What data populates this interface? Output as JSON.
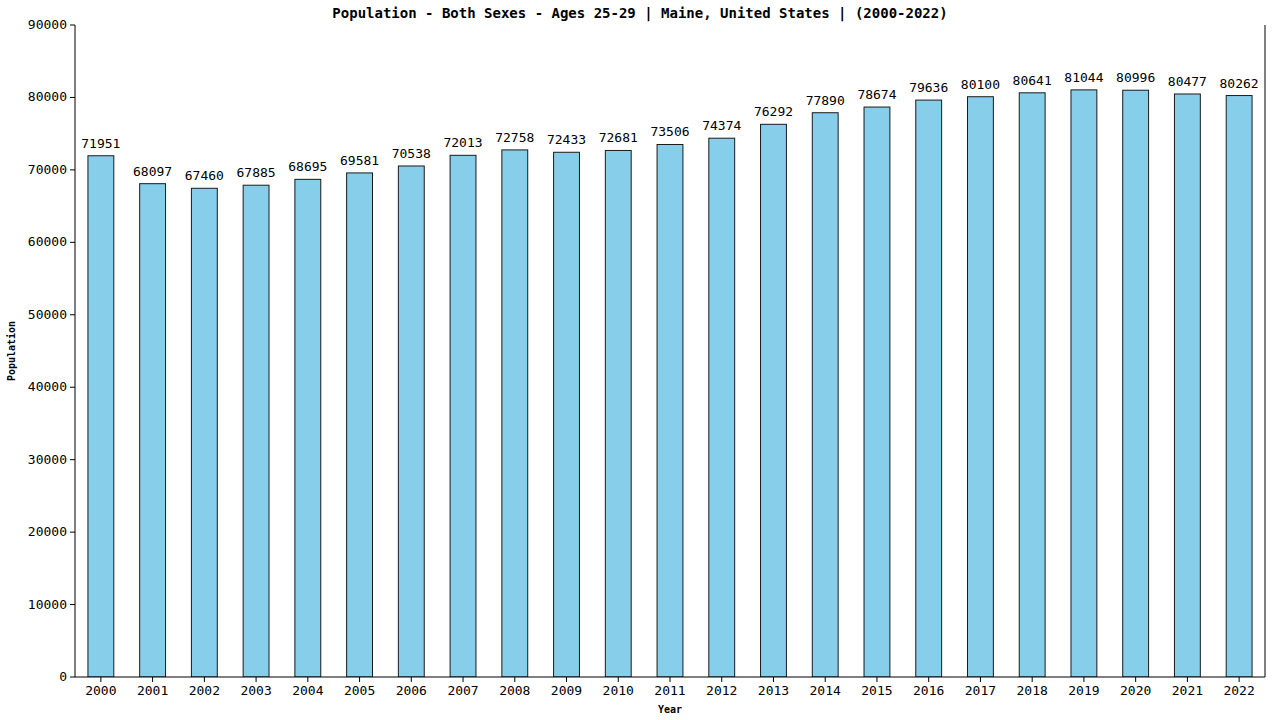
{
  "chart_data": {
    "type": "bar",
    "title": "Population - Both Sexes - Ages 25-29 | Maine, United States |  (2000-2022)",
    "x_label": "Year",
    "y_label": "Population",
    "categories": [
      "2000",
      "2001",
      "2002",
      "2003",
      "2004",
      "2005",
      "2006",
      "2007",
      "2008",
      "2009",
      "2010",
      "2011",
      "2012",
      "2013",
      "2014",
      "2015",
      "2016",
      "2017",
      "2018",
      "2019",
      "2020",
      "2021",
      "2022"
    ],
    "values": [
      71951,
      68097,
      67460,
      67885,
      68695,
      69581,
      70538,
      72013,
      72758,
      72433,
      72681,
      73506,
      74374,
      76292,
      77890,
      78674,
      79636,
      80100,
      80641,
      81044,
      80996,
      80477,
      80262
    ],
    "color": "#87ceeb",
    "ylim": [
      0,
      90000
    ],
    "yticks": [
      0,
      10000,
      20000,
      30000,
      40000,
      50000,
      60000,
      70000,
      80000,
      90000
    ],
    "grid": false,
    "data_labels": true
  }
}
